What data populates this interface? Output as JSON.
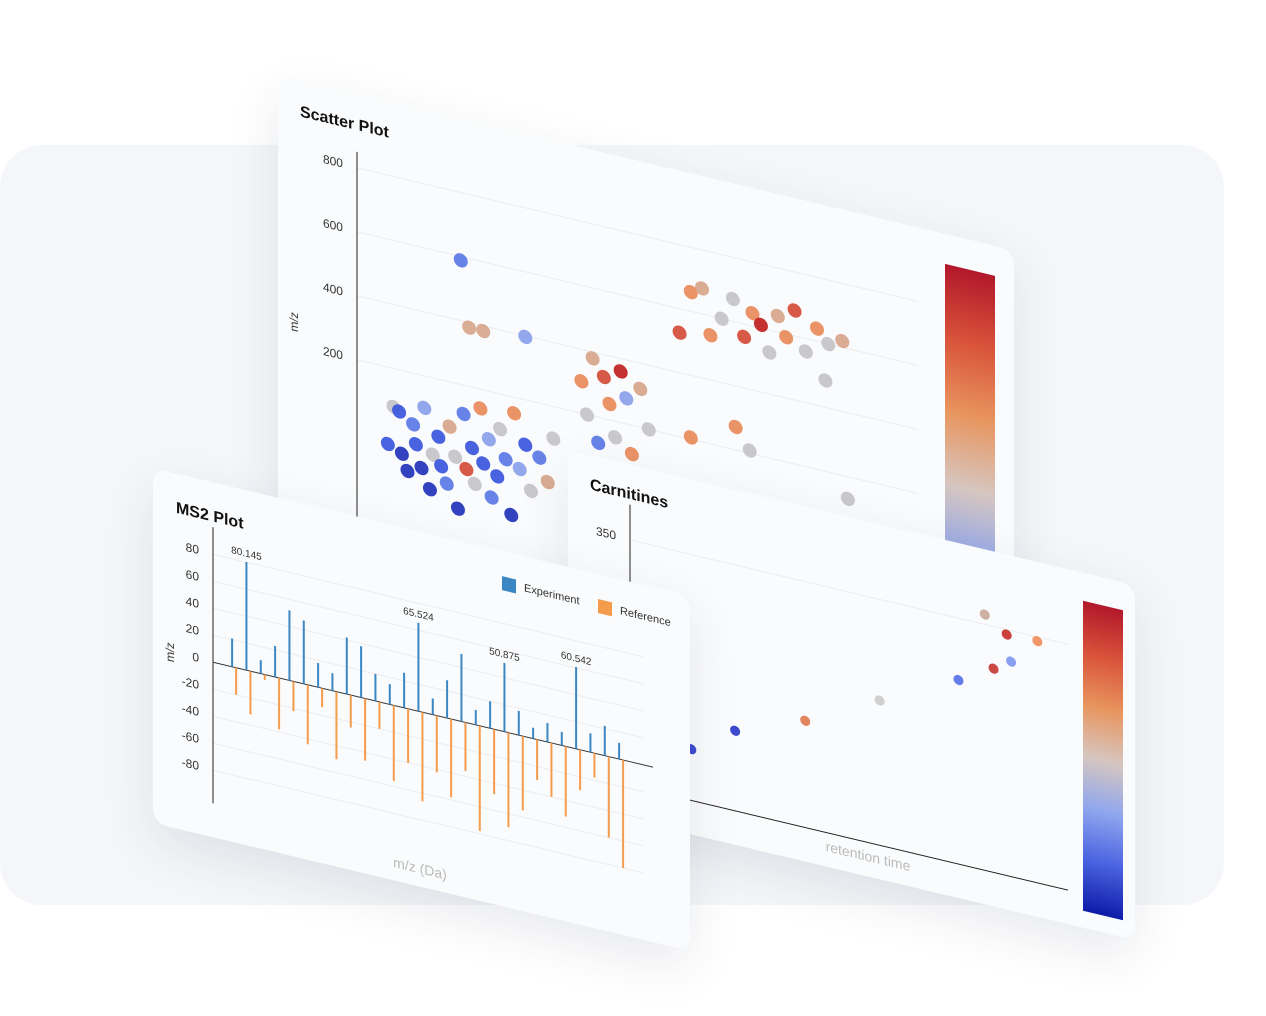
{
  "chart_data": [
    {
      "type": "scatter",
      "title": "Scatter Plot",
      "y_label": "m/z",
      "xlim": [
        0,
        20
      ],
      "ylim": [
        -300,
        850
      ],
      "yticks": [
        200,
        400,
        600,
        800
      ],
      "grid": true,
      "colorbar": true,
      "colorscale": [
        "#0d1ba8",
        "#4a63e0",
        "#8fa6ee",
        "#d6c6c0",
        "#e8955f",
        "#d9533a",
        "#b2182b"
      ],
      "x": [
        1.1,
        1.3,
        1.5,
        1.6,
        1.8,
        2.0,
        2.1,
        2.3,
        2.4,
        2.6,
        2.7,
        2.9,
        3.0,
        3.2,
        3.3,
        3.5,
        3.6,
        3.8,
        3.9,
        4.1,
        4.2,
        4.4,
        4.5,
        4.7,
        4.8,
        5.0,
        5.1,
        5.3,
        5.5,
        5.6,
        5.8,
        6.0,
        6.2,
        6.5,
        6.8,
        7.0,
        8.0,
        8.2,
        8.4,
        8.6,
        8.8,
        9.0,
        9.2,
        9.4,
        9.6,
        9.8,
        10.1,
        10.4,
        11.9,
        12.3,
        12.6,
        13.0,
        13.4,
        13.8,
        14.1,
        14.4,
        14.7,
        15.0,
        15.3,
        15.6,
        16.0,
        16.4,
        16.8,
        17.3,
        3.7,
        4.0,
        4.5,
        6.0,
        11.5,
        13.5,
        14.0,
        17.5,
        16.7,
        11.9
      ],
      "values": [
        -40,
        80,
        70,
        -60,
        -110,
        40,
        -20,
        -90,
        100,
        -150,
        -40,
        20,
        -70,
        -120,
        60,
        -30,
        -190,
        110,
        -60,
        10,
        -100,
        140,
        -30,
        50,
        -130,
        -60,
        90,
        0,
        -170,
        150,
        -20,
        60,
        -80,
        30,
        -40,
        100,
        300,
        200,
        380,
        120,
        330,
        250,
        150,
        360,
        280,
        110,
        320,
        200,
        660,
        680,
        540,
        600,
        670,
        560,
        640,
        610,
        530,
        650,
        590,
        680,
        560,
        640,
        600,
        620,
        588,
        384,
        384,
        397,
        525,
        272,
        209,
        131,
        484,
        206
      ],
      "colors": [
        "#3a55dd",
        "#c4c4c8",
        "#3a55dd",
        "#2233bb",
        "#2233bb",
        "#5a78e6",
        "#3a55dd",
        "#2233bb",
        "#8aa0ec",
        "#2233bb",
        "#c4c4c8",
        "#3a55dd",
        "#3a55dd",
        "#5a78e6",
        "#d6a58a",
        "#c4c4c8",
        "#2233bb",
        "#5a78e6",
        "#d44c3a",
        "#3a55dd",
        "#c4c4c8",
        "#e88a5a",
        "#3a55dd",
        "#8aa0ec",
        "#5a78e6",
        "#3a55dd",
        "#c4c4c8",
        "#5a78e6",
        "#2233bb",
        "#e88a5a",
        "#8aa0ec",
        "#3a55dd",
        "#c4c4c8",
        "#5a78e6",
        "#d6a58a",
        "#c4c4c8",
        "#e88a5a",
        "#c4c4c8",
        "#d6a58a",
        "#5a78e6",
        "#d44c3a",
        "#e88a5a",
        "#c4c4c8",
        "#c0201f",
        "#8aa0ec",
        "#e88a5a",
        "#d6a58a",
        "#c4c4c8",
        "#e88a5a",
        "#d6a58a",
        "#e88a5a",
        "#c4c4c8",
        "#c4c4c8",
        "#d44c3a",
        "#e88a5a",
        "#c0201f",
        "#c4c4c8",
        "#d6a58a",
        "#e88a5a",
        "#d44c3a",
        "#c4c4c8",
        "#e88a5a",
        "#c4c4c8",
        "#d6a58a",
        "#5a78e6",
        "#d6a58a",
        "#d6a58a",
        "#8aa0ec",
        "#d44c3a",
        "#e88a5a",
        "#c4c4c8",
        "#c4c4c8",
        "#c4c4c8",
        "#e88a5a"
      ]
    },
    {
      "type": "bar",
      "title": "MS2 Plot",
      "y_label": "m/z",
      "x_label": "m/z (Da)",
      "xlim": [
        0,
        450
      ],
      "ylim": [
        -100,
        100
      ],
      "yticks": [
        80,
        60,
        40,
        20,
        0,
        -20,
        -40,
        -60,
        -80
      ],
      "grid": true,
      "legend": "top-right",
      "x": [
        20,
        35,
        50,
        65,
        80,
        95,
        110,
        125,
        140,
        155,
        170,
        185,
        200,
        215,
        230,
        245,
        260,
        275,
        290,
        305,
        320,
        335,
        350,
        365,
        380,
        395,
        410,
        425
      ],
      "series": [
        {
          "name": "Experiment",
          "color": "#3a87c4",
          "values": [
            21,
            80.145,
            10,
            23,
            52,
            47,
            18,
            13,
            42,
            38,
            20,
            15,
            26,
            65.524,
            12,
            28,
            50,
            11,
            20,
            50.875,
            18,
            8,
            14,
            10,
            60.542,
            14,
            22,
            12
          ],
          "value_labels": [
            null,
            "80.145",
            null,
            null,
            null,
            null,
            null,
            null,
            null,
            null,
            null,
            null,
            null,
            "65.524",
            null,
            null,
            null,
            null,
            null,
            "50.875",
            null,
            null,
            null,
            null,
            "60.542",
            null,
            null,
            null
          ]
        },
        {
          "name": "Reference",
          "color": "#f59c4c",
          "values": [
            -20,
            -32,
            -4,
            -38,
            -22,
            -44,
            -14,
            -50,
            -24,
            -46,
            -20,
            -56,
            -40,
            -66,
            -42,
            -58,
            -36,
            -78,
            -48,
            -70,
            -55,
            -30,
            -40,
            -52,
            -30,
            -18,
            -60,
            -80
          ]
        }
      ]
    },
    {
      "type": "scatter",
      "title": "Carnitines",
      "x_label": "retention time",
      "xlim": [
        0,
        10
      ],
      "ylim": [
        0,
        400
      ],
      "yticks": [
        350
      ],
      "grid": true,
      "colorbar": true,
      "colorscale": [
        "#0d1ba8",
        "#4a63e0",
        "#8fa6ee",
        "#d6c6c0",
        "#e8955f",
        "#d9533a",
        "#b2182b"
      ],
      "x": [
        1.4,
        2.4,
        4.0,
        5.7,
        7.5,
        8.1,
        8.6,
        9.3,
        8.3,
        8.7
      ],
      "values": [
        73,
        114,
        152,
        206,
        262,
        364,
        343,
        344,
        290,
        306
      ],
      "colors": [
        "#2a3ccc",
        "#2d3bcc",
        "#e07b50",
        "#cccccc",
        "#5872e8",
        "#c9a99a",
        "#c8302c",
        "#ef8d5c",
        "#c73a35",
        "#7e98f0"
      ]
    }
  ]
}
